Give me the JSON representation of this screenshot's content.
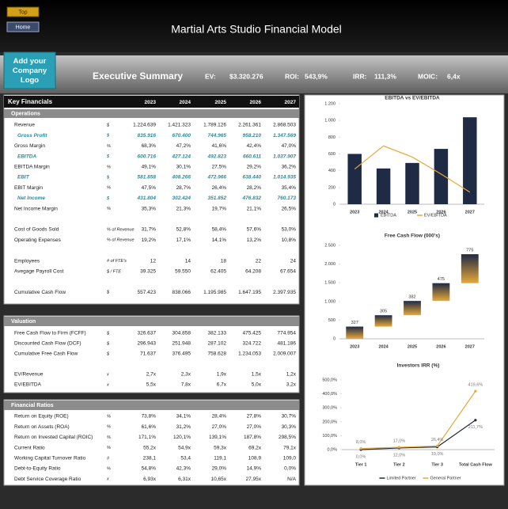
{
  "header": {
    "buttons": [
      "Top",
      "Home"
    ],
    "title": "Martial Arts Studio Financial Model"
  },
  "summary_bar": {
    "logo": "Add your Company Logo",
    "title": "Executive Summary",
    "metrics": [
      {
        "label": "EV:",
        "value": "$3.320.276"
      },
      {
        "label": "ROI:",
        "value": "543,9%"
      },
      {
        "label": "IRR:",
        "value": "111,3%"
      },
      {
        "label": "MOIC:",
        "value": "6,4x"
      }
    ]
  },
  "key_financials": {
    "title": "Key Financials",
    "years": [
      "2023",
      "2024",
      "2025",
      "2026",
      "2027"
    ],
    "section": "Operations",
    "groups": [
      [
        {
          "label": "Revenue",
          "unit": "$",
          "values": [
            "1.224.639",
            "1.421.323",
            "1.789.126",
            "2.261.361",
            "2.868.503"
          ]
        },
        {
          "label": "Gross Profit",
          "unit": "$",
          "values": [
            "835.916",
            "670.400",
            "744.965",
            "958.210",
            "1.347.569"
          ]
        },
        {
          "label": "Gross Margin",
          "unit": "%",
          "values": [
            "68,3%",
            "47,2%",
            "41,6%",
            "42,4%",
            "47,0%"
          ]
        },
        {
          "label": "EBITDA",
          "unit": "$",
          "values": [
            "600.716",
            "427.124",
            "492.823",
            "660.611",
            "1.037.907"
          ]
        },
        {
          "label": "EBITDA Margin",
          "unit": "%",
          "values": [
            "49,1%",
            "30,1%",
            "27,5%",
            "29,2%",
            "36,2%"
          ]
        },
        {
          "label": "EBIT",
          "unit": "$",
          "values": [
            "581.858",
            "408.266",
            "472.966",
            "638.440",
            "1.014.935"
          ]
        },
        {
          "label": "EBIT Margin",
          "unit": "%",
          "values": [
            "47,5%",
            "28,7%",
            "26,4%",
            "28,2%",
            "35,4%"
          ]
        },
        {
          "label": "Net Income",
          "unit": "$",
          "values": [
            "431.804",
            "302.424",
            "351.852",
            "476.832",
            "760.173"
          ]
        },
        {
          "label": "Net Income Margin",
          "unit": "%",
          "values": [
            "35,3%",
            "21,3%",
            "19,7%",
            "21,1%",
            "26,5%"
          ]
        }
      ],
      [
        {
          "label": "Cost of Goods Sold",
          "unit": "% of Revenue",
          "values": [
            "31,7%",
            "52,8%",
            "58,4%",
            "57,6%",
            "53,0%"
          ]
        },
        {
          "label": "Operating Expenses",
          "unit": "% of Revenue",
          "values": [
            "19,2%",
            "17,1%",
            "14,1%",
            "13,2%",
            "10,8%"
          ]
        }
      ],
      [
        {
          "label": "Employees",
          "unit": "# of FTE's",
          "values": [
            "12",
            "14",
            "18",
            "22",
            "24"
          ]
        },
        {
          "label": "Avegage Payroll Cost",
          "unit": "$ / FTE",
          "values": [
            "39.325",
            "59.550",
            "62.405",
            "64.208",
            "67.654"
          ]
        }
      ],
      [
        {
          "label": "Cumulative Cash Flow",
          "unit": "$",
          "values": [
            "557.423",
            "838.066",
            "1.195.985",
            "1.647.195",
            "2.397.935"
          ]
        }
      ]
    ]
  },
  "valuation": {
    "title": "Valuation",
    "groups": [
      [
        {
          "label": "Free Cash Flow to Firm (FCFF)",
          "unit": "$",
          "values": [
            "326.637",
            "304.858",
            "382.133",
            "475.425",
            "774.954"
          ]
        },
        {
          "label": "Discounted Cash Flow (DCF)",
          "unit": "$",
          "values": [
            "296.943",
            "251.948",
            "287.102",
            "324.722",
            "481.186"
          ]
        },
        {
          "label": "Cumulative Free Cash Flow",
          "unit": "$",
          "values": [
            "71.637",
            "376.495",
            "758.628",
            "1.234.053",
            "2.009.007"
          ]
        }
      ],
      [
        {
          "label": "EV/Revenue",
          "unit": "x",
          "values": [
            "2,7x",
            "2,3x",
            "1,9x",
            "1,5x",
            "1,2x"
          ]
        },
        {
          "label": "EV/EBITDA",
          "unit": "x",
          "values": [
            "5,5x",
            "7,8x",
            "6,7x",
            "5,0x",
            "3,2x"
          ]
        }
      ]
    ]
  },
  "financial_ratios": {
    "title": "Financial Ratios",
    "groups": [
      [
        {
          "label": "Return on Equity (ROE)",
          "unit": "%",
          "values": [
            "73,8%",
            "34,1%",
            "28,4%",
            "27,8%",
            "30,7%"
          ]
        },
        {
          "label": "Return on Assets (ROA)",
          "unit": "%",
          "values": [
            "61,6%",
            "31,2%",
            "27,0%",
            "27,0%",
            "30,3%"
          ]
        },
        {
          "label": "Return on Invested Capital (ROIC)",
          "unit": "%",
          "values": [
            "171,1%",
            "120,1%",
            "139,1%",
            "187,8%",
            "298,5%"
          ]
        },
        {
          "label": "Current Ratio",
          "unit": "%",
          "values": [
            "55,2x",
            "54,9x",
            "59,3x",
            "69,2x",
            "79,1x"
          ]
        },
        {
          "label": "Working Capital Turnover Ratio",
          "unit": "#",
          "values": [
            "238,1",
            "53,4",
            "119,1",
            "108,9",
            "109,0"
          ]
        },
        {
          "label": "Debt-to-Equity Ratio",
          "unit": "%",
          "values": [
            "54,8%",
            "42,3%",
            "29,0%",
            "14,9%",
            "0,0%"
          ]
        },
        {
          "label": "Debt Service Coverage Ratio",
          "unit": "x",
          "values": [
            "6,93x",
            "6,31x",
            "10,65x",
            "27,95x",
            "N/A"
          ]
        }
      ]
    ]
  },
  "chart_data": [
    {
      "type": "bar",
      "title": "EBITDA  vs EV/EBITDA",
      "categories": [
        "2023",
        "2024",
        "2025",
        "2026",
        "2027"
      ],
      "series": [
        {
          "name": "EBITDA",
          "color": "#1f2a44",
          "values": [
            600.716,
            427.124,
            492.823,
            660.611,
            1037.907
          ]
        },
        {
          "name": "EV/EBITDA",
          "color": "#e8a838",
          "type": "line",
          "axis": "y2",
          "values": [
            5.5,
            7.8,
            6.7,
            5.0,
            3.2
          ]
        }
      ],
      "ylim": [
        0,
        1200
      ],
      "yticks": [
        0,
        200,
        400,
        600,
        800,
        {
          "value": 1000,
          "label": "1.000"
        },
        {
          "value": 1200,
          "label": "1.200"
        }
      ],
      "y2lim": [
        2,
        12
      ],
      "grid": false,
      "legend": "bottom"
    },
    {
      "type": "waterfall",
      "title": "Free Cash Flow (000's)",
      "categories": [
        "2023",
        "2024",
        "2025",
        "2026",
        "2027"
      ],
      "values": [
        326.637,
        304.858,
        382.133,
        475.425,
        774.954
      ],
      "value_labels": [
        "327",
        "305",
        "382",
        "475",
        "775"
      ],
      "colors": [
        "#1f2a44",
        "#e8a838"
      ],
      "ylim": [
        0,
        2500
      ],
      "yticks": [
        0,
        500,
        {
          "value": 1000,
          "label": "1.000"
        },
        {
          "value": 1500,
          "label": "1.500"
        },
        {
          "value": 2000,
          "label": "2.000"
        },
        {
          "value": 2500,
          "label": "2.500"
        }
      ],
      "grid": false
    },
    {
      "type": "line",
      "title": "Investors IRR (%)",
      "categories": [
        "Tier 1",
        "Tier 2",
        "Tier 3",
        "Total Cash Flow"
      ],
      "series": [
        {
          "name": "Limited Partner",
          "color": "#1f2a44",
          "values": [
            0,
            12,
            19,
            211.7
          ],
          "value_labels": [
            "0,0%",
            "12,0%",
            "19,0%",
            "211,7%"
          ]
        },
        {
          "name": "General Partner",
          "color": "#e8a838",
          "values": [
            8,
            17,
            26.4,
            419.6
          ],
          "value_labels": [
            "8,0%",
            "17,0%",
            "26,4%",
            "419,6%"
          ]
        }
      ],
      "ylim": [
        0,
        500
      ],
      "yticks": [
        {
          "value": 0,
          "label": "0,0%"
        },
        {
          "value": 100,
          "label": "100,0%"
        },
        {
          "value": 200,
          "label": "200,0%"
        },
        {
          "value": 300,
          "label": "300,0%"
        },
        {
          "value": 400,
          "label": "400,0%"
        },
        {
          "value": 500,
          "label": "500,0%"
        }
      ],
      "grid": false,
      "legend": "bottom"
    }
  ]
}
